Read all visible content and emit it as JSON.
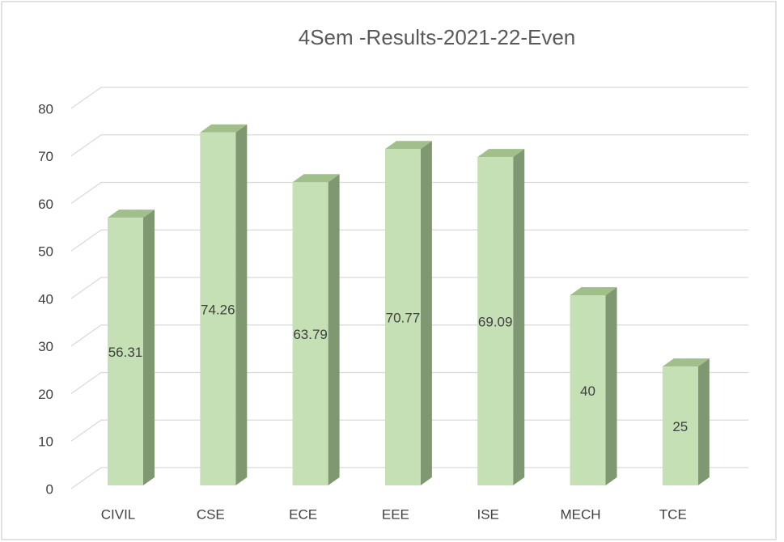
{
  "chart_data": {
    "type": "bar3d",
    "title": "4Sem -Results-2021-22-Even",
    "categories": [
      "CIVIL",
      "CSE",
      "ECE",
      "EEE",
      "ISE",
      "MECH",
      "TCE"
    ],
    "values": [
      56.31,
      74.26,
      63.79,
      70.77,
      69.09,
      40,
      25
    ],
    "color": "#c5e0b4",
    "ylim": [
      0,
      80
    ],
    "yticks": [
      0,
      10,
      20,
      30,
      40,
      50,
      60,
      70,
      80
    ],
    "grid": true
  }
}
